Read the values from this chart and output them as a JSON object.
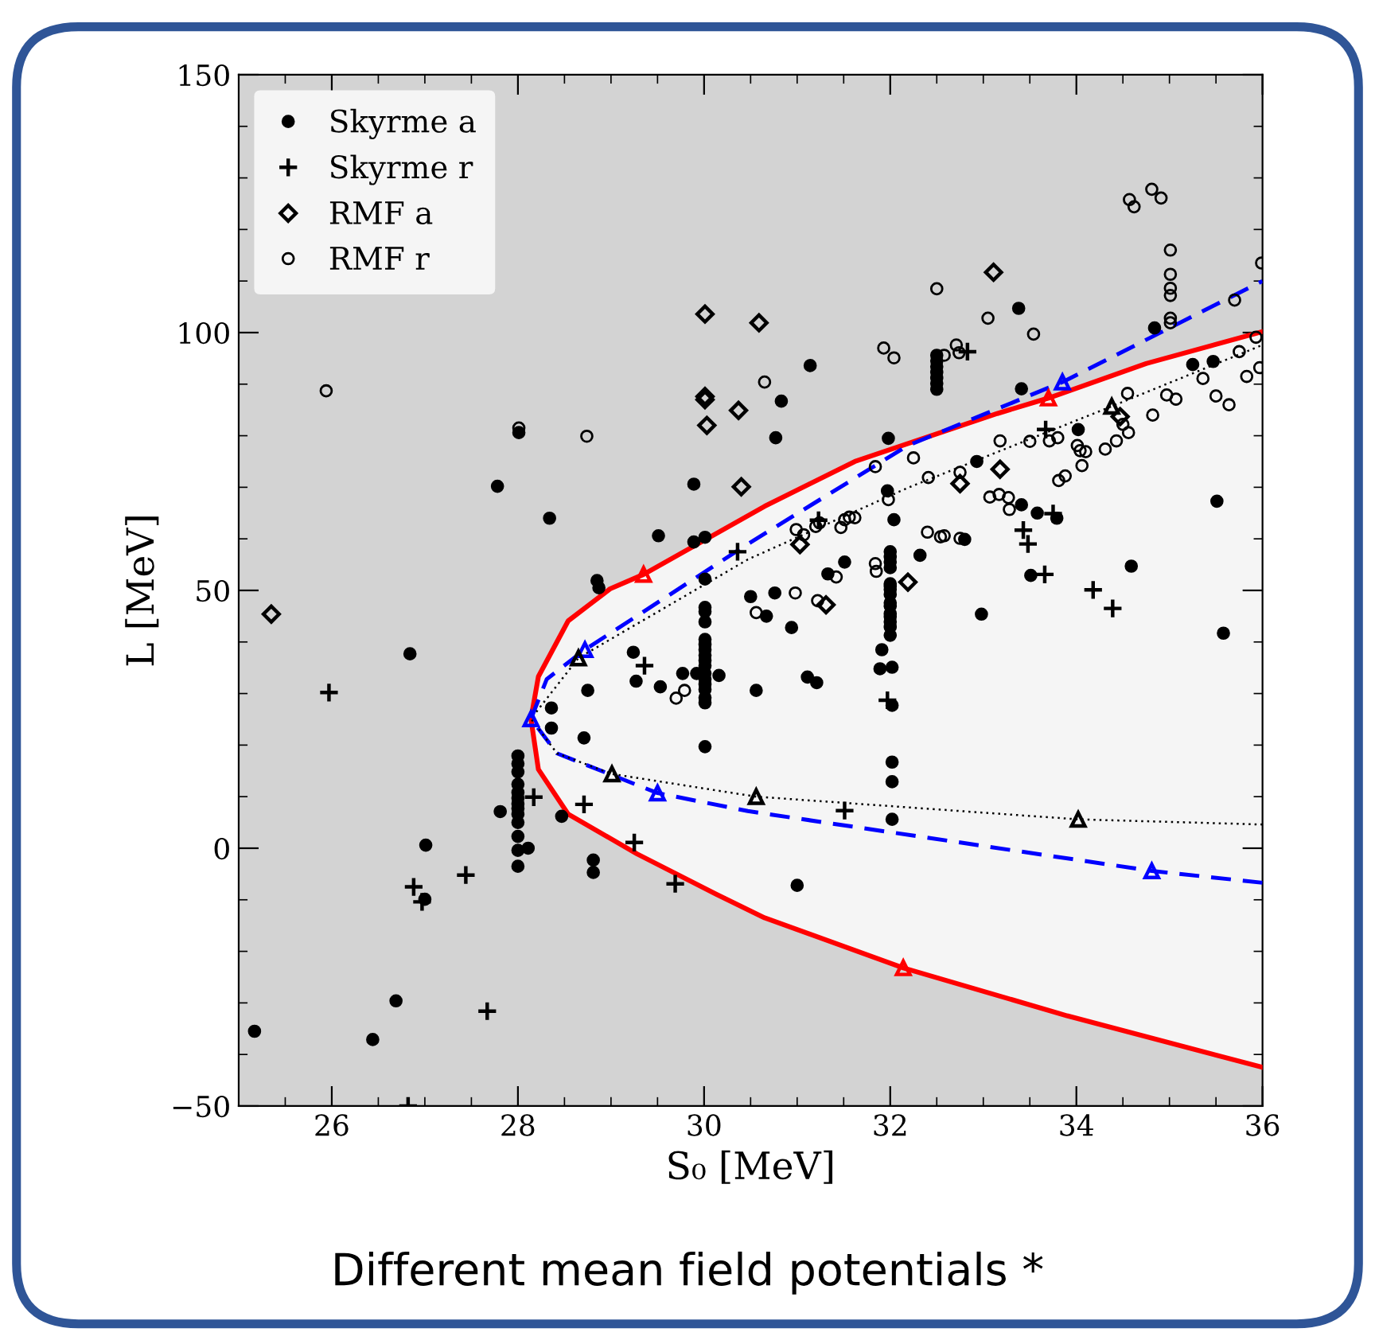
{
  "chart_data": {
    "type": "scatter",
    "xlabel": "S₀ [MeV]",
    "ylabel": "L [MeV]",
    "xlim": [
      25,
      36
    ],
    "xticks": [
      26,
      28,
      30,
      32,
      34,
      36
    ],
    "ylim": [
      -50,
      150
    ],
    "yticks": [
      -50,
      0,
      50,
      100,
      150
    ],
    "grid": false,
    "legend": "top left",
    "annotations": [
      "Different mean field potentials *"
    ],
    "series": [
      {
        "name": "Skyrme a",
        "color": "#000000",
        "marker": "circle",
        "x": [
          25.17,
          26.84,
          28.0,
          28.0,
          28.0,
          28.0,
          28.0,
          28.0,
          28.0,
          28.0,
          28.0,
          28.0,
          28.0,
          28.0,
          28.0,
          27.81,
          28.11,
          28.47,
          28.81,
          28.81,
          27.01,
          27.0,
          26.69,
          26.44,
          28.36,
          28.36,
          28.71,
          28.75,
          29.24,
          29.27,
          29.53,
          29.77,
          30.01,
          30.01,
          30.01,
          30.01,
          30.01,
          30.01,
          30.01,
          30.01,
          30.01,
          30.01,
          30.01,
          30.01,
          30.01,
          30.01,
          30.01,
          30.01,
          30.01,
          29.92,
          30.16,
          30.5,
          30.56,
          28.85,
          28.87,
          28.01,
          27.78,
          28.34,
          29.51,
          29.89,
          29.89,
          30.01,
          31.14,
          30.83,
          30.77,
          31.98,
          32.5,
          32.5,
          32.5,
          32.5,
          32.5,
          32.5,
          32.5,
          33.38,
          33.41,
          34.84,
          35.25,
          35.47,
          35.51,
          34.59,
          34.02,
          32.93,
          33.41,
          33.58,
          33.79,
          33.51,
          32.8,
          31.97,
          32.04,
          32.0,
          32.0,
          32.0,
          32.0,
          32.0,
          32.0,
          32.0,
          32.0,
          32.0,
          32.0,
          32.0,
          32.0,
          32.0,
          32.0,
          32.0,
          32.32,
          31.51,
          31.33,
          30.76,
          30.67,
          30.94,
          31.11,
          31.21,
          31.91,
          31.89,
          32.02,
          32.02,
          32.02,
          32.02,
          32.02,
          31.0,
          32.98,
          35.58
        ],
        "values": [
          -35.5,
          37.7,
          17.9,
          16.4,
          14.8,
          12.4,
          10.8,
          9.7,
          8.6,
          7.7,
          6.6,
          5.0,
          2.3,
          -0.4,
          -3.5,
          7.1,
          0.0,
          6.2,
          -2.3,
          -4.7,
          0.6,
          -9.9,
          -29.6,
          -37.1,
          27.2,
          23.3,
          21.4,
          30.6,
          38.0,
          32.4,
          31.3,
          33.9,
          52.2,
          46.7,
          45.9,
          43.9,
          40.5,
          39.5,
          38.5,
          37.4,
          36.4,
          35.4,
          33.9,
          32.8,
          31.8,
          30.8,
          29.2,
          28.2,
          19.7,
          33.9,
          33.5,
          48.8,
          30.6,
          51.9,
          50.5,
          80.6,
          70.2,
          64.0,
          60.6,
          70.6,
          59.4,
          60.3,
          93.6,
          86.7,
          79.6,
          79.5,
          95.6,
          94.5,
          93.4,
          92.3,
          91.2,
          90.1,
          89.0,
          104.7,
          89.1,
          100.9,
          93.8,
          94.4,
          67.3,
          54.7,
          81.2,
          75.0,
          66.6,
          65.0,
          64.0,
          52.9,
          59.9,
          69.3,
          63.7,
          57.5,
          56.5,
          55.5,
          54.4,
          50.8,
          51.3,
          50.2,
          49.2,
          47.6,
          47.0,
          45.5,
          44.9,
          43.9,
          42.9,
          41.3,
          56.8,
          55.5,
          53.2,
          49.5,
          45.0,
          42.8,
          33.2,
          32.1,
          38.5,
          34.8,
          35.1,
          27.7,
          16.7,
          12.9,
          5.6,
          -7.2,
          45.4,
          41.7
        ]
      },
      {
        "name": "Skyrme r",
        "color": "#000000",
        "marker": "cross",
        "x": [
          25.97,
          28.17,
          28.71,
          29.25,
          29.69,
          26.88,
          26.97,
          27.44,
          27.67,
          26.82,
          29.36,
          30.36,
          32.83,
          33.67,
          33.75,
          33.43,
          33.48,
          33.66,
          31.23,
          31.97,
          31.51,
          34.18,
          34.39
        ],
        "values": [
          30.2,
          9.9,
          8.5,
          1.1,
          -6.9,
          -7.5,
          -10.4,
          -5.2,
          -31.6,
          -50,
          35.4,
          57.5,
          96.3,
          81.2,
          64.9,
          61.7,
          59.0,
          53.1,
          63.6,
          28.7,
          7.3,
          50.1,
          46.5
        ]
      },
      {
        "name": "RMF a",
        "color": "#000000",
        "marker": "diamond",
        "x": [
          25.35,
          30.01,
          30.59,
          30.01,
          30.01,
          30.03,
          30.37,
          30.4,
          33.11,
          34.47,
          33.18,
          32.75,
          32.19,
          31.03,
          31.31
        ],
        "values": [
          45.4,
          103.6,
          101.9,
          87.6,
          87.0,
          82.0,
          84.9,
          70.1,
          111.7,
          83.7,
          73.5,
          70.7,
          51.6,
          58.9,
          47.2
        ]
      },
      {
        "name": "RMF r",
        "color": "#000000",
        "marker": "circle",
        "x": [
          25.94,
          28.01,
          28.74,
          30.65,
          29.7,
          29.79,
          30.56,
          31.93,
          32.04,
          32.5,
          32.71,
          32.74,
          32.58,
          33.05,
          33.54,
          34.57,
          34.62,
          34.81,
          34.91,
          35.01,
          35.01,
          35.01,
          35.01,
          35.01,
          35.01,
          35.99,
          35.7,
          35.93,
          35.75,
          35.97,
          35.83,
          35.36,
          35.5,
          35.64,
          34.55,
          34.97,
          35.07,
          34.5,
          34.56,
          34.43,
          34.31,
          34.82,
          33.8,
          33.71,
          34.01,
          34.04,
          34.1,
          34.06,
          33.88,
          33.81,
          33.5,
          33.18,
          32.75,
          32.41,
          32.25,
          31.84,
          33.07,
          33.17,
          33.27,
          33.28,
          32.4,
          32.54,
          32.58,
          32.75,
          31.98,
          31.84,
          31.85,
          31.42,
          30.99,
          31.07,
          31.2,
          31.24,
          31.47,
          31.51,
          31.56,
          31.62,
          30.98,
          31.22
        ],
        "values": [
          88.7,
          81.5,
          79.9,
          90.4,
          29.1,
          30.6,
          45.7,
          97.0,
          95.1,
          108.5,
          97.6,
          96.1,
          95.6,
          102.8,
          99.7,
          125.8,
          124.4,
          127.8,
          126.1,
          116.0,
          111.3,
          108.6,
          107.2,
          102.8,
          101.9,
          113.5,
          106.3,
          99.1,
          96.3,
          93.2,
          91.5,
          91.1,
          87.7,
          86.0,
          88.2,
          87.9,
          87.1,
          82.2,
          80.6,
          79.0,
          77.4,
          84.0,
          79.6,
          79.0,
          78.1,
          77.1,
          76.9,
          74.2,
          72.2,
          71.3,
          78.9,
          79.0,
          72.9,
          71.9,
          75.7,
          74.0,
          68.1,
          68.6,
          68.0,
          65.7,
          61.3,
          60.4,
          60.6,
          60.1,
          67.6,
          55.2,
          53.7,
          52.6,
          61.8,
          60.8,
          62.4,
          63.1,
          62.2,
          63.7,
          64.2,
          64.1,
          49.5,
          48.0
        ]
      },
      {
        "type": "line",
        "color": "#ff0000",
        "line_style": "solid",
        "marker": "none",
        "x": [
          36.0,
          33.9,
          32.14,
          30.65,
          30.13,
          29.28,
          28.54,
          28.22,
          28.14,
          28.22,
          28.54,
          28.99,
          29.35,
          30.65,
          31.62,
          33.15,
          33.7,
          34.75,
          36.0
        ],
        "values": [
          -42.5,
          -32.5,
          -23.2,
          -13.5,
          -8.9,
          -1.1,
          6.6,
          15.3,
          25.1,
          33.3,
          44.1,
          50.3,
          53.1,
          66.3,
          75.0,
          84.3,
          87.3,
          94.0,
          100.2
        ]
      },
      {
        "type": "line",
        "color": "#0000ff",
        "line_style": "dashed",
        "marker": "none",
        "x": [
          36.0,
          34.81,
          30.47,
          29.5,
          28.42,
          28.14,
          28.31,
          28.72,
          30.47,
          32.19,
          33.85,
          36.0
        ],
        "values": [
          -6.7,
          -4.4,
          7.2,
          10.7,
          18.4,
          25.1,
          32.8,
          38.5,
          59.0,
          78.1,
          90.4,
          110
        ]
      },
      {
        "type": "line",
        "color": "#000000",
        "line_style": "dotted",
        "marker": "none",
        "x": [
          36.0,
          34.02,
          30.56,
          29.01,
          28.42,
          28.14,
          28.65,
          30.47,
          32.19,
          34.38,
          36.0
        ],
        "values": [
          4.6,
          5.6,
          10.0,
          14.4,
          18.4,
          25.1,
          36.9,
          56.0,
          69.9,
          85.7,
          97.6
        ]
      },
      {
        "color": "#ff0000",
        "marker": "triangle",
        "x": [
          29.35,
          33.7,
          32.14
        ],
        "values": [
          53.1,
          87.3,
          -23.2
        ]
      },
      {
        "color": "#0000ff",
        "marker": "triangle",
        "x": [
          28.14,
          28.72,
          29.5,
          33.85,
          34.81
        ],
        "values": [
          25.1,
          38.5,
          10.7,
          90.4,
          -4.4
        ]
      },
      {
        "color": "#000000",
        "marker": "triangle",
        "x": [
          28.65,
          29.01,
          30.56,
          34.38,
          34.02
        ],
        "values": [
          36.9,
          14.4,
          10.0,
          85.7,
          5.6
        ]
      }
    ]
  }
}
